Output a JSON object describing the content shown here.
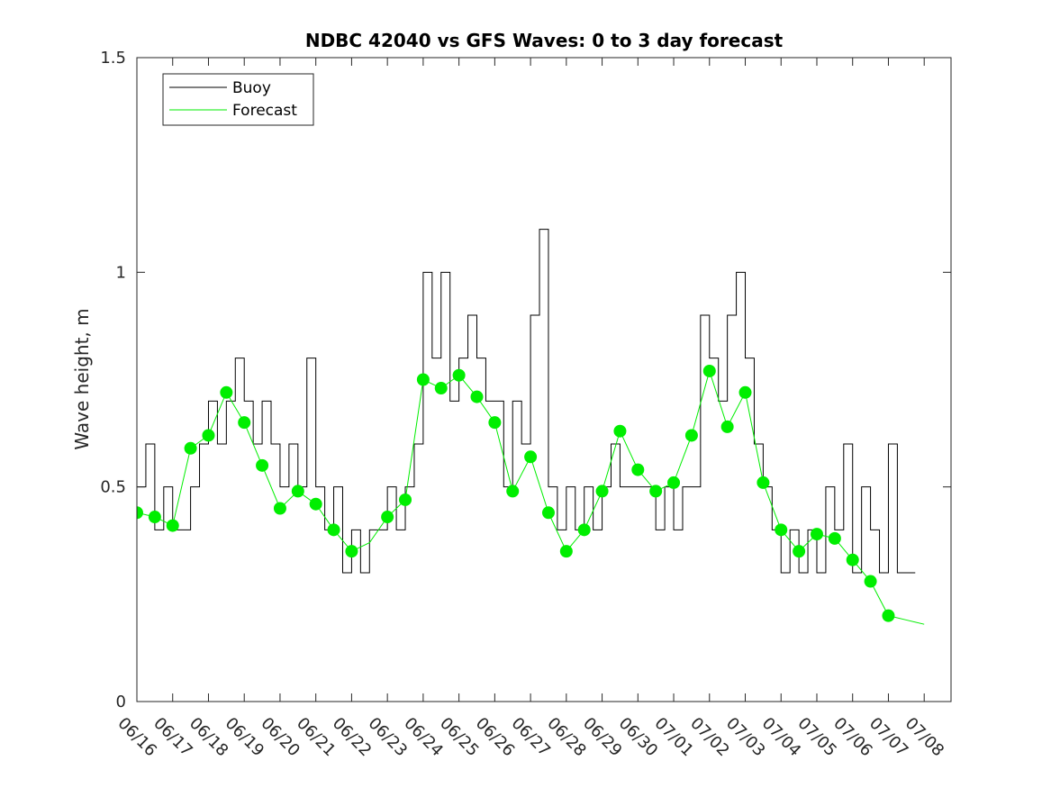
{
  "chart_data": {
    "type": "line",
    "title": "NDBC 42040 vs GFS Waves: 0 to 3 day forecast",
    "xlabel": "",
    "ylabel": "Wave height, m",
    "ylim": [
      0,
      1.5
    ],
    "y_ticks": [
      "0",
      "0.5",
      "1",
      "1.5"
    ],
    "xlim_days": [
      0,
      22.75
    ],
    "x_ticks": [
      "06/16",
      "06/17",
      "06/18",
      "06/19",
      "06/20",
      "06/21",
      "06/22",
      "06/23",
      "06/24",
      "06/25",
      "06/26",
      "06/27",
      "06/28",
      "06/29",
      "06/30",
      "07/01",
      "07/02",
      "07/03",
      "07/04",
      "07/05",
      "07/06",
      "07/07",
      "07/08"
    ],
    "grid": false,
    "legend_position": "top-left",
    "colors": {
      "buoy": "#000000",
      "forecast": "#00ee00",
      "marker": "#00ee00"
    },
    "series": [
      {
        "name": "Buoy",
        "x": [
          "06/16 00:00",
          "06/16 06:00",
          "06/16 12:00",
          "06/16 18:00",
          "06/17 00:00",
          "06/17 06:00",
          "06/17 12:00",
          "06/17 18:00",
          "06/18 00:00",
          "06/18 06:00",
          "06/18 12:00",
          "06/18 18:00",
          "06/19 00:00",
          "06/19 06:00",
          "06/19 12:00",
          "06/19 18:00",
          "06/20 00:00",
          "06/20 06:00",
          "06/20 12:00",
          "06/20 18:00",
          "06/21 00:00",
          "06/21 06:00",
          "06/21 12:00",
          "06/21 18:00",
          "06/22 00:00",
          "06/22 06:00",
          "06/22 12:00",
          "06/22 18:00",
          "06/23 00:00",
          "06/23 06:00",
          "06/23 12:00",
          "06/23 18:00",
          "06/24 00:00",
          "06/24 06:00",
          "06/24 12:00",
          "06/24 18:00",
          "06/25 00:00",
          "06/25 06:00",
          "06/25 12:00",
          "06/25 18:00",
          "06/26 00:00",
          "06/26 06:00",
          "06/26 12:00",
          "06/26 18:00",
          "06/27 00:00",
          "06/27 06:00",
          "06/27 12:00",
          "06/27 18:00",
          "06/28 00:00",
          "06/28 06:00",
          "06/28 12:00",
          "06/28 18:00",
          "06/29 00:00",
          "06/29 06:00",
          "06/29 12:00",
          "06/29 18:00",
          "06/30 00:00",
          "06/30 06:00",
          "06/30 12:00",
          "06/30 18:00",
          "07/01 00:00",
          "07/01 06:00",
          "07/01 12:00",
          "07/01 18:00",
          "07/02 00:00",
          "07/02 06:00",
          "07/02 12:00",
          "07/02 18:00",
          "07/03 00:00",
          "07/03 06:00",
          "07/03 12:00",
          "07/03 18:00",
          "07/04 00:00",
          "07/04 06:00",
          "07/04 12:00",
          "07/04 18:00",
          "07/05 00:00",
          "07/05 06:00",
          "07/05 12:00",
          "07/05 18:00",
          "07/06 00:00",
          "07/06 06:00",
          "07/06 12:00",
          "07/06 18:00",
          "07/07 00:00",
          "07/07 06:00",
          "07/07 12:00"
        ],
        "values": [
          0.5,
          0.6,
          0.4,
          0.5,
          0.4,
          0.4,
          0.5,
          0.6,
          0.7,
          0.6,
          0.7,
          0.8,
          0.7,
          0.6,
          0.7,
          0.6,
          0.5,
          0.6,
          0.5,
          0.8,
          0.5,
          0.4,
          0.5,
          0.3,
          0.4,
          0.3,
          0.4,
          0.4,
          0.5,
          0.4,
          0.5,
          0.6,
          1.0,
          0.8,
          1.0,
          0.7,
          0.8,
          0.9,
          0.8,
          0.7,
          0.7,
          0.5,
          0.7,
          0.6,
          0.9,
          1.1,
          0.5,
          0.4,
          0.5,
          0.4,
          0.5,
          0.4,
          0.5,
          0.6,
          0.5,
          0.5,
          0.5,
          0.5,
          0.4,
          0.5,
          0.4,
          0.5,
          0.5,
          0.9,
          0.8,
          0.7,
          0.9,
          1.0,
          0.8,
          0.6,
          0.5,
          0.4,
          0.3,
          0.4,
          0.3,
          0.4,
          0.3,
          0.5,
          0.4,
          0.6,
          0.3,
          0.5,
          0.4,
          0.3,
          0.6,
          0.3,
          0.3
        ]
      },
      {
        "name": "Forecast",
        "x": [
          "06/16 00:00",
          "06/16 12:00",
          "06/17 00:00",
          "06/17 12:00",
          "06/18 00:00",
          "06/18 12:00",
          "06/19 00:00",
          "06/19 12:00",
          "06/20 00:00",
          "06/20 12:00",
          "06/21 00:00",
          "06/21 12:00",
          "06/22 00:00",
          "06/22 12:00",
          "06/23 00:00",
          "06/23 12:00",
          "06/24 00:00",
          "06/24 12:00",
          "06/25 00:00",
          "06/25 12:00",
          "06/26 00:00",
          "06/26 12:00",
          "06/27 00:00",
          "06/27 12:00",
          "06/28 00:00",
          "06/28 12:00",
          "06/29 00:00",
          "06/29 12:00",
          "06/30 00:00",
          "06/30 12:00",
          "07/01 00:00",
          "07/01 12:00",
          "07/02 00:00",
          "07/02 12:00",
          "07/03 00:00",
          "07/03 12:00",
          "07/04 00:00",
          "07/04 12:00",
          "07/05 00:00",
          "07/05 12:00",
          "07/06 00:00",
          "07/06 12:00",
          "07/07 00:00",
          "07/07 12:00",
          "07/08 00:00"
        ],
        "values": [
          0.44,
          0.43,
          0.41,
          0.59,
          0.62,
          0.72,
          0.65,
          0.55,
          0.45,
          0.49,
          0.46,
          0.4,
          0.35,
          0.37,
          0.43,
          0.47,
          0.75,
          0.73,
          0.76,
          0.71,
          0.65,
          0.49,
          0.57,
          0.44,
          0.35,
          0.4,
          0.49,
          0.63,
          0.54,
          0.49,
          0.51,
          0.62,
          0.77,
          0.64,
          0.72,
          0.51,
          0.4,
          0.35,
          0.39,
          0.38,
          0.33,
          0.28,
          0.2,
          0.19,
          0.18
        ]
      }
    ],
    "markers": {
      "x": [
        "06/16 00:00",
        "06/16 12:00",
        "06/17 00:00",
        "06/17 12:00",
        "06/18 00:00",
        "06/18 12:00",
        "06/19 00:00",
        "06/19 12:00",
        "06/20 00:00",
        "06/20 12:00",
        "06/21 00:00",
        "06/21 12:00",
        "06/22 00:00",
        "06/23 00:00",
        "06/23 12:00",
        "06/24 00:00",
        "06/24 12:00",
        "06/25 00:00",
        "06/25 12:00",
        "06/26 00:00",
        "06/26 12:00",
        "06/27 00:00",
        "06/27 12:00",
        "06/28 00:00",
        "06/28 12:00",
        "06/29 00:00",
        "06/29 12:00",
        "06/30 00:00",
        "06/30 12:00",
        "07/01 00:00",
        "07/01 12:00",
        "07/02 00:00",
        "07/02 12:00",
        "07/03 00:00",
        "07/03 12:00",
        "07/04 00:00",
        "07/04 12:00",
        "07/05 00:00",
        "07/05 12:00",
        "07/06 00:00",
        "07/06 12:00",
        "07/07 00:00"
      ],
      "values": [
        0.44,
        0.43,
        0.41,
        0.59,
        0.62,
        0.72,
        0.65,
        0.55,
        0.45,
        0.49,
        0.46,
        0.4,
        0.35,
        0.43,
        0.47,
        0.75,
        0.73,
        0.76,
        0.71,
        0.65,
        0.49,
        0.57,
        0.44,
        0.35,
        0.4,
        0.49,
        0.63,
        0.54,
        0.49,
        0.51,
        0.62,
        0.77,
        0.64,
        0.72,
        0.51,
        0.4,
        0.35,
        0.39,
        0.38,
        0.33,
        0.28,
        0.2
      ]
    }
  }
}
